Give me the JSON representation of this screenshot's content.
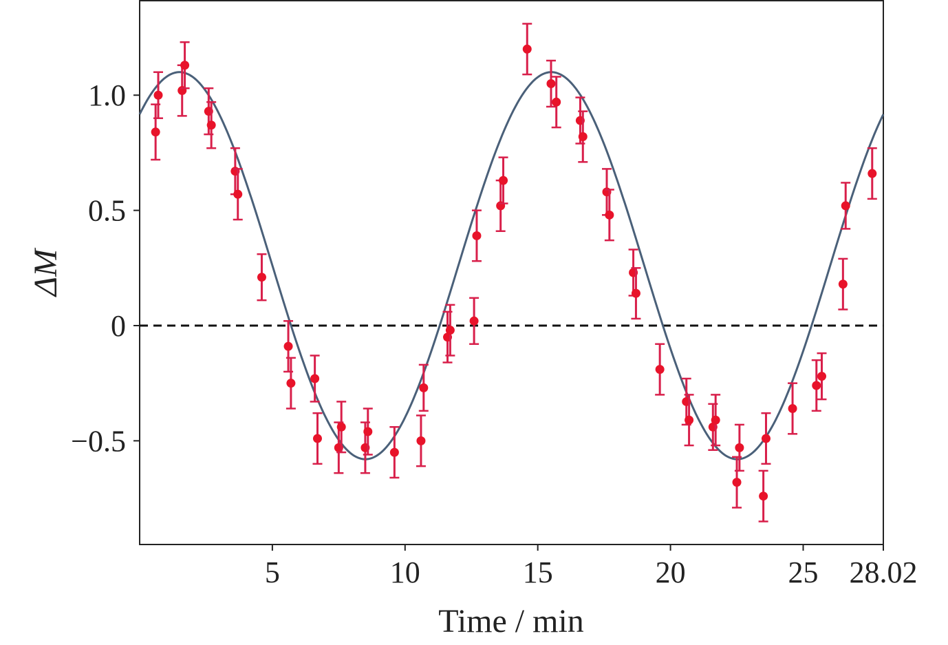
{
  "chart_data": {
    "type": "scatter",
    "xlabel": "Time / min",
    "ylabel": "ΔM",
    "xlim": [
      0,
      28.02
    ],
    "ylim": [
      -0.95,
      1.41
    ],
    "x_ticks": [
      {
        "value": 5,
        "label": "5"
      },
      {
        "value": 10,
        "label": "10"
      },
      {
        "value": 15,
        "label": "15"
      },
      {
        "value": 20,
        "label": "20"
      },
      {
        "value": 25,
        "label": "25"
      },
      {
        "value": 28.02,
        "label": "28.02"
      }
    ],
    "y_ticks": [
      {
        "value": 1.0,
        "label": "1.0"
      },
      {
        "value": 0.5,
        "label": "0.5"
      },
      {
        "value": 0,
        "label": "0"
      },
      {
        "value": -0.5,
        "label": "−0.5"
      }
    ],
    "reference_line": {
      "y": 0,
      "style": "dashed"
    },
    "fit_curve": {
      "function": "sinusoid",
      "offset": 0.26,
      "amplitude": 0.84,
      "period": 14.01,
      "peak_x": 1.5,
      "x_range": [
        0,
        28.02
      ]
    },
    "grid": false,
    "series": [
      {
        "points": [
          {
            "x": 0.6,
            "y": 0.84,
            "err": 0.12
          },
          {
            "x": 0.7,
            "y": 1.0,
            "err": 0.1
          },
          {
            "x": 1.6,
            "y": 1.02,
            "err": 0.11
          },
          {
            "x": 1.7,
            "y": 1.13,
            "err": 0.1
          },
          {
            "x": 2.6,
            "y": 0.93,
            "err": 0.1
          },
          {
            "x": 2.7,
            "y": 0.87,
            "err": 0.1
          },
          {
            "x": 3.6,
            "y": 0.67,
            "err": 0.1
          },
          {
            "x": 3.7,
            "y": 0.57,
            "err": 0.11
          },
          {
            "x": 4.6,
            "y": 0.21,
            "err": 0.1
          },
          {
            "x": 5.6,
            "y": -0.09,
            "err": 0.11
          },
          {
            "x": 5.7,
            "y": -0.25,
            "err": 0.11
          },
          {
            "x": 6.6,
            "y": -0.23,
            "err": 0.1
          },
          {
            "x": 6.7,
            "y": -0.49,
            "err": 0.11
          },
          {
            "x": 7.5,
            "y": -0.53,
            "err": 0.11
          },
          {
            "x": 7.6,
            "y": -0.44,
            "err": 0.11
          },
          {
            "x": 8.5,
            "y": -0.53,
            "err": 0.11
          },
          {
            "x": 8.6,
            "y": -0.46,
            "err": 0.1
          },
          {
            "x": 9.6,
            "y": -0.55,
            "err": 0.11
          },
          {
            "x": 10.6,
            "y": -0.5,
            "err": 0.11
          },
          {
            "x": 10.7,
            "y": -0.27,
            "err": 0.1
          },
          {
            "x": 11.6,
            "y": -0.05,
            "err": 0.11
          },
          {
            "x": 11.7,
            "y": -0.02,
            "err": 0.11
          },
          {
            "x": 12.6,
            "y": 0.02,
            "err": 0.1
          },
          {
            "x": 12.7,
            "y": 0.39,
            "err": 0.11
          },
          {
            "x": 13.6,
            "y": 0.52,
            "err": 0.11
          },
          {
            "x": 13.7,
            "y": 0.63,
            "err": 0.1
          },
          {
            "x": 14.6,
            "y": 1.2,
            "err": 0.11
          },
          {
            "x": 15.5,
            "y": 1.05,
            "err": 0.1
          },
          {
            "x": 15.7,
            "y": 0.97,
            "err": 0.11
          },
          {
            "x": 16.6,
            "y": 0.89,
            "err": 0.1
          },
          {
            "x": 16.7,
            "y": 0.82,
            "err": 0.11
          },
          {
            "x": 17.6,
            "y": 0.58,
            "err": 0.1
          },
          {
            "x": 17.7,
            "y": 0.48,
            "err": 0.11
          },
          {
            "x": 18.6,
            "y": 0.23,
            "err": 0.1
          },
          {
            "x": 18.7,
            "y": 0.14,
            "err": 0.11
          },
          {
            "x": 19.6,
            "y": -0.19,
            "err": 0.11
          },
          {
            "x": 20.6,
            "y": -0.33,
            "err": 0.1
          },
          {
            "x": 20.7,
            "y": -0.41,
            "err": 0.11
          },
          {
            "x": 21.6,
            "y": -0.44,
            "err": 0.1
          },
          {
            "x": 21.7,
            "y": -0.41,
            "err": 0.11
          },
          {
            "x": 22.5,
            "y": -0.68,
            "err": 0.11
          },
          {
            "x": 22.6,
            "y": -0.53,
            "err": 0.1
          },
          {
            "x": 23.5,
            "y": -0.74,
            "err": 0.11
          },
          {
            "x": 23.6,
            "y": -0.49,
            "err": 0.11
          },
          {
            "x": 24.6,
            "y": -0.36,
            "err": 0.11
          },
          {
            "x": 25.5,
            "y": -0.26,
            "err": 0.11
          },
          {
            "x": 25.7,
            "y": -0.22,
            "err": 0.1
          },
          {
            "x": 26.5,
            "y": 0.18,
            "err": 0.11
          },
          {
            "x": 26.6,
            "y": 0.52,
            "err": 0.1
          },
          {
            "x": 27.6,
            "y": 0.66,
            "err": 0.11
          }
        ]
      }
    ]
  },
  "colors": {
    "points": "#e8132a",
    "error_bars": "#d81f4a",
    "fit_line": "#4a6079",
    "zero_line": "#111111",
    "axes": "#222222"
  }
}
